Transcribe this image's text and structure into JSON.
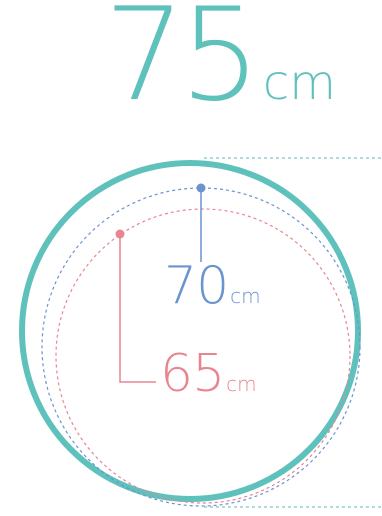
{
  "headline": {
    "value": "75",
    "unit": "cm"
  },
  "circles": [
    {
      "value": "70",
      "unit": "cm",
      "color": "#6b93cf",
      "style": "dashed"
    },
    {
      "value": "65",
      "unit": "cm",
      "color": "#e88591",
      "style": "dashed"
    }
  ],
  "colors": {
    "outer_ring": "#5fc1bc",
    "inner_70": "#6b93cf",
    "inner_65": "#e88591",
    "guide_lines": "#5fb7bd"
  }
}
